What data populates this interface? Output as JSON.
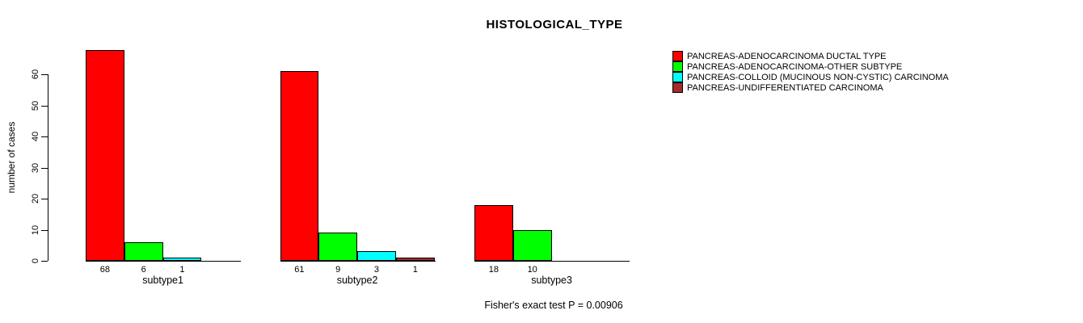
{
  "title": "HISTOLOGICAL_TYPE",
  "colors": {
    "background": "#FFFFFF",
    "text": "#000000",
    "axis": "#000000",
    "red": "#FF0000",
    "green": "#00FF00",
    "cyan": "#00FFFF",
    "brown": "#A52A2A"
  },
  "chart_data": {
    "type": "bar",
    "title": "HISTOLOGICAL_TYPE",
    "xlabel": "",
    "ylabel": "number of cases",
    "categories": [
      "subtype1",
      "subtype2",
      "subtype3"
    ],
    "series": [
      {
        "name": "PANCREAS-ADENOCARCINOMA DUCTAL TYPE",
        "color": "#FF0000",
        "values": [
          68,
          61,
          18
        ]
      },
      {
        "name": "PANCREAS-ADENOCARCINOMA-OTHER SUBTYPE",
        "color": "#00FF00",
        "values": [
          6,
          9,
          10
        ]
      },
      {
        "name": "PANCREAS-COLLOID (MUCINOUS NON-CYSTIC) CARCINOMA",
        "color": "#00FFFF",
        "values": [
          1,
          3,
          0
        ]
      },
      {
        "name": "PANCREAS-UNDIFFERENTIATED CARCINOMA",
        "color": "#A52A2A",
        "values": [
          0,
          1,
          0
        ]
      }
    ],
    "bar_value_labels": [
      [
        "68",
        "6",
        "1",
        ""
      ],
      [
        "61",
        "9",
        "3",
        "1"
      ],
      [
        "18",
        "10",
        "",
        ""
      ]
    ],
    "yticks": [
      0,
      10,
      20,
      30,
      40,
      50,
      60
    ],
    "ylim": [
      0,
      60
    ],
    "grid": false,
    "legend_position": "right",
    "annotation": "Fisher's exact test P = 0.00906"
  }
}
